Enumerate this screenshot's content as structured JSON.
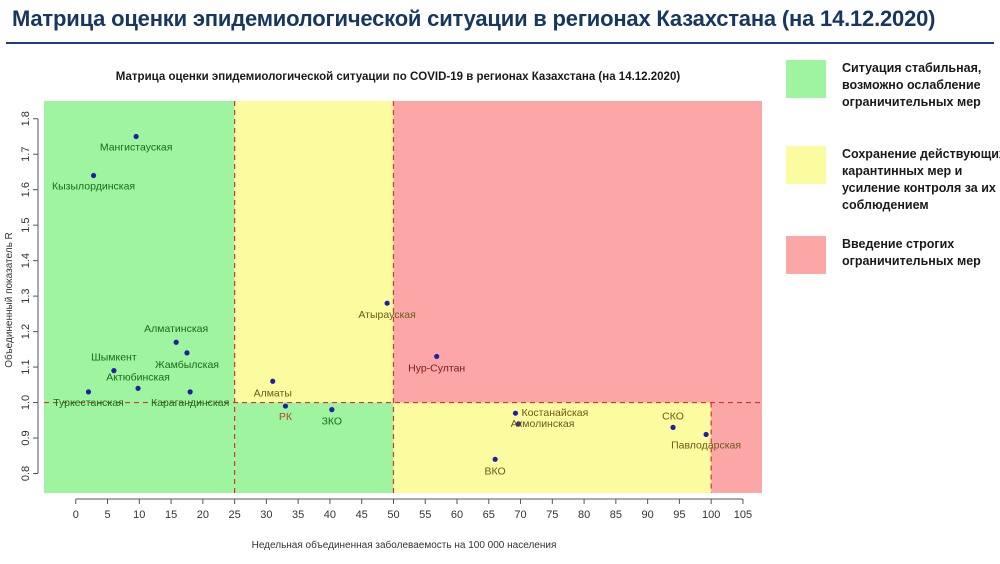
{
  "slide": {
    "title": "Матрица оценки эпидемиологической ситуации в регионах Казахстана (на 14.12.2020)"
  },
  "legend": {
    "items": [
      {
        "color": "#9ff59f",
        "label": "Ситуация стабильная, возможно ослабление ограничительных мер"
      },
      {
        "color": "#fbfb9f",
        "label": "Сохранение действующих карантинных мер и усиление контроля за их соблюдением"
      },
      {
        "color": "#fca7a7",
        "label": "Введение строгих ограничительных мер"
      }
    ]
  },
  "chart_data": {
    "type": "scatter",
    "title": "Матрица оценки эпидемиологической ситуации по COVID-19 в регионах Казахстана (на 14.12.2020)",
    "xlabel": "Недельная объединенная заболеваемость на 100 000 населения",
    "ylabel": "Объединенный показатель R",
    "xlim": [
      -5,
      108
    ],
    "ylim": [
      0.745,
      1.85
    ],
    "x_ticks": [
      "0",
      "5",
      "10",
      "15",
      "20",
      "25",
      "30",
      "35",
      "40",
      "45",
      "50",
      "55",
      "60",
      "65",
      "70",
      "75",
      "80",
      "85",
      "90",
      "95",
      "100",
      "105"
    ],
    "y_ticks": [
      "0.8",
      "0.9",
      "1.0",
      "1.1",
      "1.2",
      "1.3",
      "1.4",
      "1.5",
      "1.6",
      "1.7",
      "1.8"
    ],
    "thresholds": {
      "x": [
        25,
        50,
        100
      ],
      "y": 1.0
    },
    "zones": [
      {
        "x0": -5,
        "x1": 25,
        "y0": 0.745,
        "y1": 1.85,
        "zone": "green"
      },
      {
        "x0": 25,
        "x1": 50,
        "y0": 0.745,
        "y1": 1.0,
        "zone": "green"
      },
      {
        "x0": 25,
        "x1": 50,
        "y0": 1.0,
        "y1": 1.85,
        "zone": "yellow"
      },
      {
        "x0": 50,
        "x1": 100,
        "y0": 0.745,
        "y1": 1.0,
        "zone": "yellow"
      },
      {
        "x0": 50,
        "x1": 108,
        "y0": 1.0,
        "y1": 1.85,
        "zone": "red"
      },
      {
        "x0": 100,
        "x1": 108,
        "y0": 0.745,
        "y1": 1.0,
        "zone": "red"
      }
    ],
    "zone_colors": {
      "green": "#9ff59f",
      "yellow": "#fbfb9f",
      "red": "#fca7a7"
    },
    "point_color": "#1f1fa8",
    "points": [
      {
        "label": "Мангистауская",
        "x": 9.5,
        "y": 1.75,
        "anchor": "middle",
        "dy": 14,
        "color": "#1a6b1a"
      },
      {
        "label": "Кызылординская",
        "x": 2.8,
        "y": 1.64,
        "anchor": "middle",
        "dy": 14,
        "color": "#1a6b1a"
      },
      {
        "label": "Алматинская",
        "x": 15.8,
        "y": 1.17,
        "anchor": "middle",
        "dy": -10,
        "color": "#1a6b1a"
      },
      {
        "label": "Жамбылская",
        "x": 17.5,
        "y": 1.14,
        "anchor": "middle",
        "dy": 15,
        "color": "#1a6b1a"
      },
      {
        "label": "Шымкент",
        "x": 6.0,
        "y": 1.09,
        "anchor": "middle",
        "dy": -10,
        "color": "#1a6b1a"
      },
      {
        "label": "Актюбинская",
        "x": 9.8,
        "y": 1.04,
        "anchor": "middle",
        "dy": -8,
        "color": "#1a6b1a"
      },
      {
        "label": "Туркестанская",
        "x": 2.0,
        "y": 1.03,
        "anchor": "middle",
        "dy": 14,
        "color": "#1a6b1a"
      },
      {
        "label": "Карагандинская",
        "x": 18.0,
        "y": 1.03,
        "anchor": "middle",
        "dy": 14,
        "color": "#1a6b1a"
      },
      {
        "label": "Атырауская",
        "x": 49.0,
        "y": 1.28,
        "anchor": "middle",
        "dy": 15,
        "color": "#6b5a1a"
      },
      {
        "label": "Алматы",
        "x": 31.0,
        "y": 1.06,
        "anchor": "middle",
        "dy": 15,
        "color": "#6b5a1a"
      },
      {
        "label": "РК",
        "x": 33.0,
        "y": 0.99,
        "anchor": "middle",
        "dy": 14,
        "color": "#c0402a"
      },
      {
        "label": "ЗКО",
        "x": 40.3,
        "y": 0.98,
        "anchor": "middle",
        "dy": 15,
        "color": "#1a6b1a"
      },
      {
        "label": "Нур-Султан",
        "x": 56.8,
        "y": 1.13,
        "anchor": "middle",
        "dy": 15,
        "color": "#7a1a1a"
      },
      {
        "label": "Костанайская",
        "x": 69.2,
        "y": 0.97,
        "anchor": "start",
        "dy": 3,
        "dx": 6,
        "color": "#6b5a1a"
      },
      {
        "label": "Акмолинская",
        "x": 69.7,
        "y": 0.94,
        "anchor": "start",
        "dy": 3,
        "dx": -8,
        "color": "#6b5a1a"
      },
      {
        "label": "ВКО",
        "x": 66.0,
        "y": 0.84,
        "anchor": "middle",
        "dy": 15,
        "color": "#6b5a1a"
      },
      {
        "label": "СКО",
        "x": 94.0,
        "y": 0.93,
        "anchor": "middle",
        "dy": -8,
        "color": "#6b5a1a"
      },
      {
        "label": "Павлодарская",
        "x": 99.2,
        "y": 0.91,
        "anchor": "middle",
        "dy": 14,
        "color": "#6b5a1a"
      }
    ]
  }
}
